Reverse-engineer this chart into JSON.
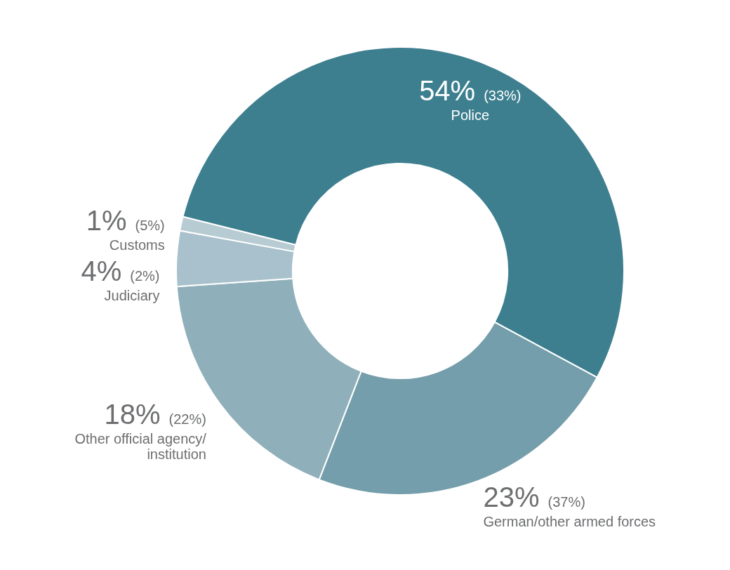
{
  "chart_data": {
    "type": "donut",
    "categories": [
      "Police",
      "German/other armed forces",
      "Other official agency/ institution",
      "Judiciary",
      "Customs"
    ],
    "values": [
      54,
      23,
      18,
      4,
      1
    ],
    "value_labels": [
      "54% (33%)",
      "23% (37%)",
      "18% (22%)",
      "4% (2%)",
      "1% (5%)"
    ],
    "colors": [
      "#3d7f8f",
      "#749eab",
      "#8fb0ba",
      "#a9c1cc",
      "#b7cbd3"
    ],
    "legend": false
  }
}
